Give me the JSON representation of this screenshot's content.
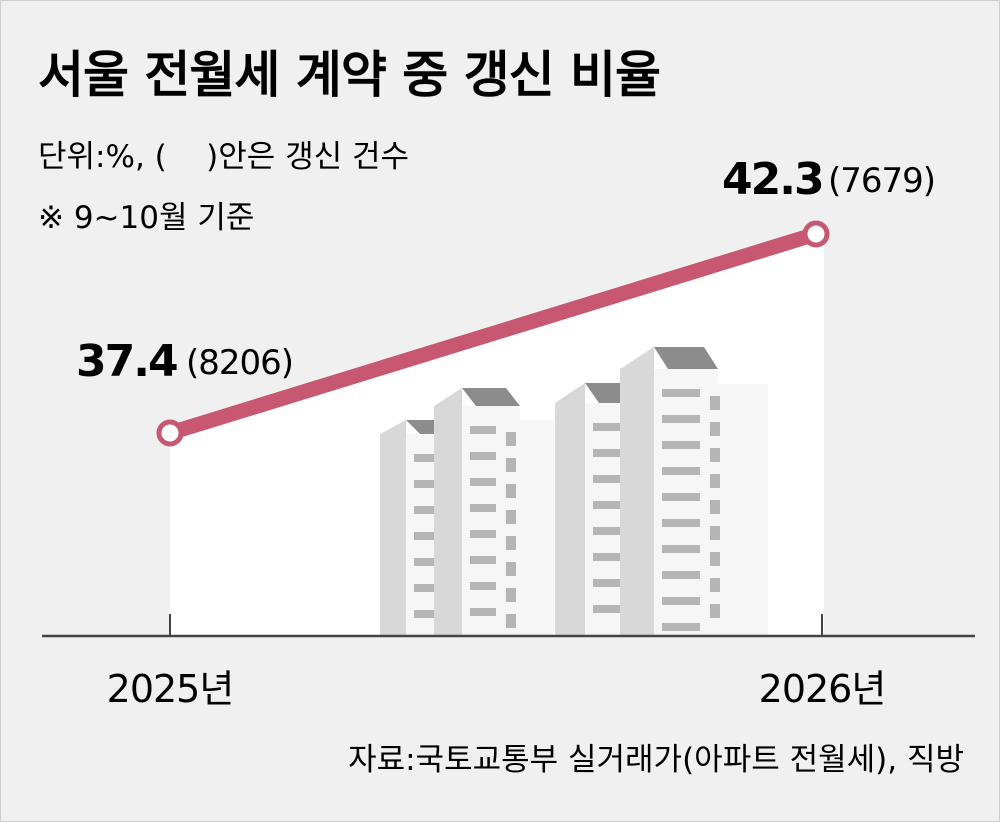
{
  "header": {
    "title": "서울 전월세 계약 중 갱신 비율",
    "unit_note": "단위:%, (    )안은 갱신 건수",
    "period_note": "※ 9~10월 기준"
  },
  "footer": {
    "source": "자료:국토교통부 실거래가(아파트 전월세), 직방"
  },
  "colors": {
    "line": "#c85872",
    "area": "#ffffff",
    "background": "#f0f0f0",
    "building_light": "#d8d8d8",
    "building_face": "#f6f6f6",
    "building_dark": "#8c8c8c",
    "window": "#b5b5b5"
  },
  "chart_data": {
    "type": "line",
    "title": "서울 전월세 계약 중 갱신 비율",
    "xlabel": "",
    "ylabel": "",
    "categories": [
      "2025년",
      "2026년"
    ],
    "series": [
      {
        "values": [
          37.4,
          42.3
        ],
        "value_labels": [
          "37.4",
          "42.3"
        ],
        "counts": [
          "(8206)",
          "(7679)"
        ]
      }
    ],
    "grid": false,
    "legend": "none"
  }
}
